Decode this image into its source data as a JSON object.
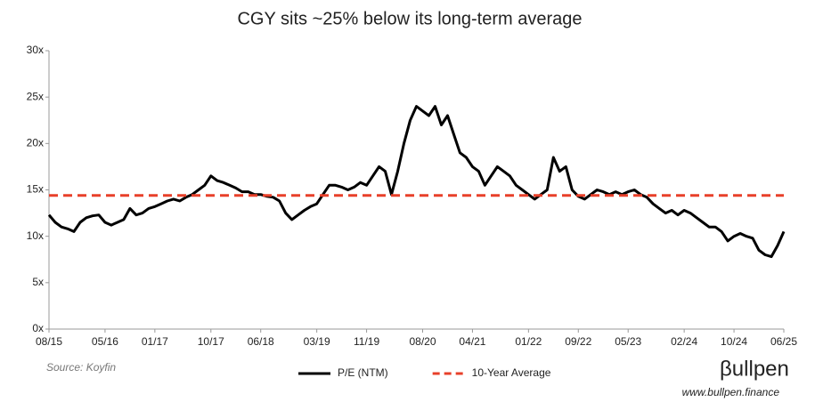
{
  "chart_data": {
    "type": "line",
    "title": "CGY sits ~25% below its long-term average",
    "source": "Source: Koyfin",
    "logo": "βullpen",
    "website": "www.bullpen.finance",
    "x": [
      "08/15",
      "09/15",
      "10/15",
      "11/15",
      "12/15",
      "01/16",
      "02/16",
      "03/16",
      "04/16",
      "05/16",
      "06/16",
      "07/16",
      "08/16",
      "09/16",
      "10/16",
      "11/16",
      "12/16",
      "01/17",
      "02/17",
      "03/17",
      "04/17",
      "05/17",
      "06/17",
      "07/17",
      "08/17",
      "09/17",
      "10/17",
      "11/17",
      "12/17",
      "01/18",
      "02/18",
      "03/18",
      "04/18",
      "05/18",
      "06/18",
      "07/18",
      "08/18",
      "09/18",
      "10/18",
      "11/18",
      "12/18",
      "01/19",
      "02/19",
      "03/19",
      "04/19",
      "05/19",
      "06/19",
      "07/19",
      "08/19",
      "09/19",
      "10/19",
      "11/19",
      "12/19",
      "01/20",
      "02/20",
      "03/20",
      "04/20",
      "05/20",
      "06/20",
      "07/20",
      "08/20",
      "09/20",
      "10/20",
      "11/20",
      "12/20",
      "01/21",
      "02/21",
      "03/21",
      "04/21",
      "05/21",
      "06/21",
      "07/21",
      "08/21",
      "09/21",
      "10/21",
      "11/21",
      "12/21",
      "01/22",
      "02/22",
      "03/22",
      "04/22",
      "05/22",
      "06/22",
      "07/22",
      "08/22",
      "09/22",
      "10/22",
      "11/22",
      "12/22",
      "01/23",
      "02/23",
      "03/23",
      "04/23",
      "05/23",
      "06/23",
      "07/23",
      "08/23",
      "09/23",
      "10/23",
      "11/23",
      "12/23",
      "01/24",
      "02/24",
      "03/24",
      "04/24",
      "05/24",
      "06/24",
      "07/24",
      "08/24",
      "09/24",
      "10/24",
      "11/24",
      "12/24",
      "01/25",
      "02/25",
      "03/25",
      "04/25",
      "05/25",
      "06/25"
    ],
    "xticks": [
      "08/15",
      "05/16",
      "01/17",
      "10/17",
      "06/18",
      "03/19",
      "11/19",
      "08/20",
      "04/21",
      "01/22",
      "09/22",
      "05/23",
      "02/24",
      "10/24",
      "06/25"
    ],
    "series": [
      {
        "name": "P/E (NTM)",
        "color": "#000000",
        "values": [
          12.3,
          11.5,
          11,
          10.8,
          10.5,
          11.5,
          12,
          12.2,
          12.3,
          11.5,
          11.2,
          11.5,
          11.8,
          13,
          12.3,
          12.5,
          13,
          13.2,
          13.5,
          13.8,
          14,
          13.8,
          14.2,
          14.5,
          15,
          15.5,
          16.5,
          16,
          15.8,
          15.5,
          15.2,
          14.8,
          14.8,
          14.5,
          14.5,
          14.3,
          14.2,
          13.8,
          12.5,
          11.8,
          12.3,
          12.8,
          13.2,
          13.5,
          14.5,
          15.5,
          15.5,
          15.3,
          15,
          15.3,
          15.8,
          15.5,
          16.5,
          17.5,
          17,
          14.5,
          17,
          20,
          22.5,
          24,
          23.5,
          23,
          24,
          22,
          23,
          21,
          19,
          18.5,
          17.5,
          17,
          15.5,
          16.5,
          17.5,
          17,
          16.5,
          15.5,
          15,
          14.5,
          14,
          14.5,
          15,
          18.5,
          17,
          17.5,
          15,
          14.3,
          14,
          14.5,
          15,
          14.8,
          14.5,
          14.8,
          14.5,
          14.8,
          15,
          14.5,
          14.2,
          13.5,
          13,
          12.5,
          12.8,
          12.3,
          12.8,
          12.5,
          12,
          11.5,
          11,
          11,
          10.5,
          9.5,
          10,
          10.3,
          10,
          9.8,
          8.5,
          8,
          7.8,
          9,
          10.5
        ]
      },
      {
        "name": "10-Year Average",
        "color": "#e8402a",
        "dashed": true,
        "value": 14.4
      }
    ],
    "ylim": [
      0,
      30
    ],
    "yticks": [
      {
        "value": 0,
        "label": "0x"
      },
      {
        "value": 5,
        "label": "5x"
      },
      {
        "value": 10,
        "label": "10x"
      },
      {
        "value": 15,
        "label": "15x"
      },
      {
        "value": 20,
        "label": "20x"
      },
      {
        "value": 25,
        "label": "25x"
      },
      {
        "value": 30,
        "label": "30x"
      }
    ],
    "grid": false
  }
}
